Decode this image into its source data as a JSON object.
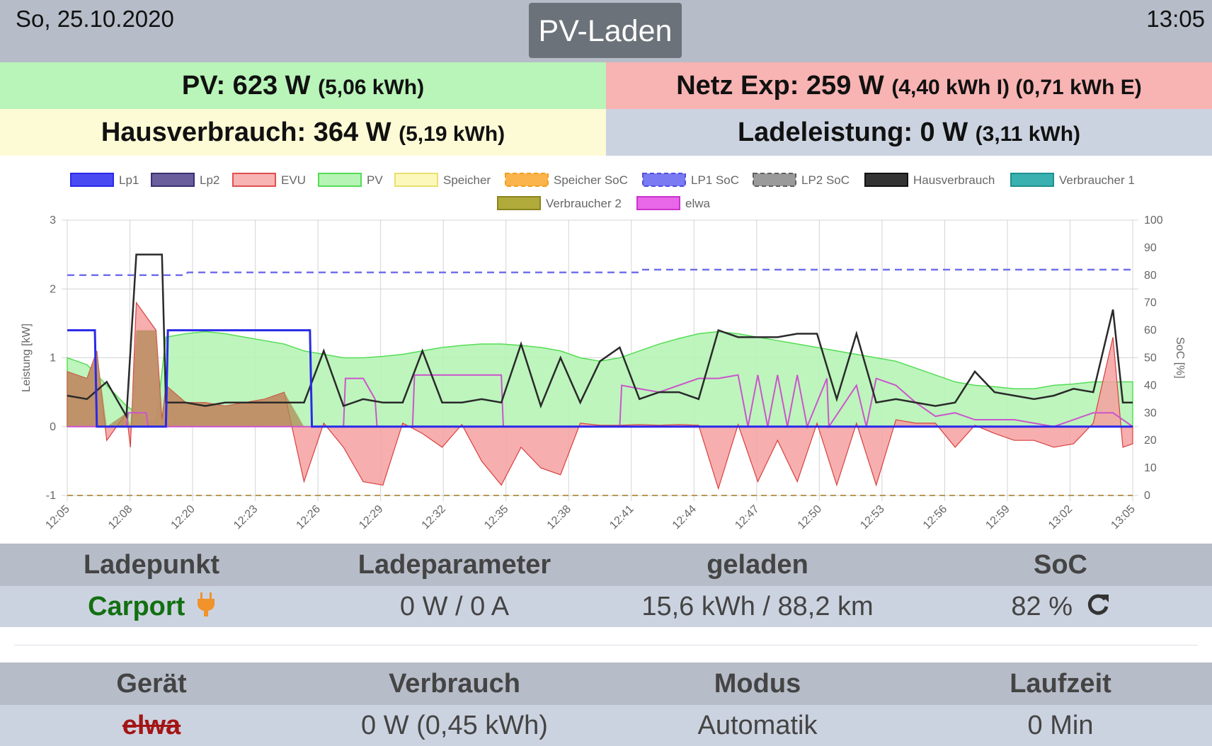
{
  "header": {
    "date": "So, 25.10.2020",
    "title": "PV-Laden",
    "time": "13:05"
  },
  "stats": {
    "pv_label": "PV: 623 W",
    "pv_extra": "(5,06 kWh)",
    "netz_label": "Netz Exp: 259 W",
    "netz_extra": "(4,40 kWh I) (0,71 kWh E)",
    "haus_label": "Hausverbrauch: 364 W",
    "haus_extra": "(5,19 kWh)",
    "lade_label": "Ladeleistung: 0 W",
    "lade_extra": "(3,11 kWh)"
  },
  "chart_data": {
    "type": "line",
    "ylabel": "Leistung [kW]",
    "y2label": "SoC [%]",
    "ylim": [
      -1,
      3
    ],
    "y2lim": [
      0,
      100
    ],
    "yticks": [
      "3",
      "2",
      "1",
      "0",
      "-1"
    ],
    "y2ticks": [
      "100",
      "90",
      "80",
      "70",
      "60",
      "50",
      "40",
      "30",
      "20",
      "10",
      "0"
    ],
    "xticks": [
      "12:05",
      "12:08",
      "12:20",
      "12:23",
      "12:26",
      "12:29",
      "12:32",
      "12:35",
      "12:38",
      "12:41",
      "12:44",
      "12:47",
      "12:50",
      "12:53",
      "12:56",
      "12:59",
      "13:02",
      "13:05"
    ],
    "legend": [
      {
        "name": "Lp1",
        "fill": "#4a4af2",
        "stroke": "#2a2ae8",
        "dash": false
      },
      {
        "name": "Lp2",
        "fill": "#6a5e9c",
        "stroke": "#3a3070",
        "dash": false
      },
      {
        "name": "EVU",
        "fill": "#f8b3b3",
        "stroke": "#e05050",
        "dash": false
      },
      {
        "name": "PV",
        "fill": "#b6f4b6",
        "stroke": "#55dd55",
        "dash": false
      },
      {
        "name": "Speicher",
        "fill": "#fcf8bc",
        "stroke": "#e8e070",
        "dash": false
      },
      {
        "name": "Speicher SoC",
        "fill": "#fbb44c",
        "stroke": "#f0a020",
        "dash": true
      },
      {
        "name": "LP1 SoC",
        "fill": "#7a7af2",
        "stroke": "#5050e0",
        "dash": true
      },
      {
        "name": "LP2 SoC",
        "fill": "#9a9a9a",
        "stroke": "#606060",
        "dash": true
      },
      {
        "name": "Hausverbrauch",
        "fill": "#333333",
        "stroke": "#111111",
        "dash": false
      },
      {
        "name": "Verbraucher 1",
        "fill": "#3ab0b0",
        "stroke": "#20908f",
        "dash": false
      },
      {
        "name": "Verbraucher 2",
        "fill": "#b0aa3a",
        "stroke": "#8a8420",
        "dash": false
      },
      {
        "name": "elwa",
        "fill": "#e866e8",
        "stroke": "#cc33cc",
        "dash": false
      }
    ],
    "series": [
      {
        "name": "PV",
        "values": [
          [
            0,
            1.0
          ],
          [
            1,
            0.9
          ],
          [
            2,
            0.6
          ],
          [
            3,
            0.3
          ],
          [
            4,
            0.1
          ],
          [
            4.5,
            0.05
          ],
          [
            5,
            1.3
          ],
          [
            6,
            1.35
          ],
          [
            7,
            1.38
          ],
          [
            8,
            1.35
          ],
          [
            9,
            1.3
          ],
          [
            10,
            1.25
          ],
          [
            11,
            1.2
          ],
          [
            12,
            1.1
          ],
          [
            13,
            1.05
          ],
          [
            14,
            1.0
          ],
          [
            15,
            1.0
          ],
          [
            16,
            1.02
          ],
          [
            17,
            1.05
          ],
          [
            18,
            1.1
          ],
          [
            19,
            1.15
          ],
          [
            20,
            1.18
          ],
          [
            21,
            1.2
          ],
          [
            22,
            1.2
          ],
          [
            23,
            1.18
          ],
          [
            24,
            1.15
          ],
          [
            25,
            1.1
          ],
          [
            26,
            1.0
          ],
          [
            27,
            0.95
          ],
          [
            28,
            1.0
          ],
          [
            29,
            1.1
          ],
          [
            30,
            1.2
          ],
          [
            31,
            1.28
          ],
          [
            32,
            1.35
          ],
          [
            33,
            1.38
          ],
          [
            34,
            1.35
          ],
          [
            35,
            1.3
          ],
          [
            36,
            1.25
          ],
          [
            37,
            1.2
          ],
          [
            38,
            1.15
          ],
          [
            39,
            1.1
          ],
          [
            40,
            1.05
          ],
          [
            41,
            1.0
          ],
          [
            42,
            0.95
          ],
          [
            43,
            0.85
          ],
          [
            44,
            0.75
          ],
          [
            45,
            0.65
          ],
          [
            46,
            0.6
          ],
          [
            47,
            0.58
          ],
          [
            48,
            0.55
          ],
          [
            49,
            0.55
          ],
          [
            50,
            0.6
          ],
          [
            51,
            0.62
          ],
          [
            52,
            0.65
          ],
          [
            53,
            0.65
          ],
          [
            54,
            0.65
          ]
        ]
      },
      {
        "name": "EVU",
        "values": [
          [
            0,
            0.8
          ],
          [
            1,
            0.7
          ],
          [
            1.5,
            1.1
          ],
          [
            2,
            -0.2
          ],
          [
            3,
            0.2
          ],
          [
            3.2,
            -0.3
          ],
          [
            3.5,
            1.8
          ],
          [
            4,
            1.6
          ],
          [
            4.5,
            1.4
          ],
          [
            4.8,
            0.1
          ],
          [
            5,
            0.6
          ],
          [
            6,
            0.35
          ],
          [
            7,
            0.35
          ],
          [
            8,
            0.3
          ],
          [
            9,
            0.35
          ],
          [
            10,
            0.4
          ],
          [
            11,
            0.5
          ],
          [
            12,
            -0.8
          ],
          [
            13,
            0.05
          ],
          [
            14,
            -0.3
          ],
          [
            15,
            -0.8
          ],
          [
            16,
            -0.85
          ],
          [
            17,
            0.05
          ],
          [
            18,
            -0.1
          ],
          [
            19,
            -0.3
          ],
          [
            20,
            0.03
          ],
          [
            21,
            -0.5
          ],
          [
            22,
            -0.85
          ],
          [
            23,
            -0.3
          ],
          [
            24,
            -0.6
          ],
          [
            25,
            -0.7
          ],
          [
            26,
            0.05
          ],
          [
            27,
            0.02
          ],
          [
            28,
            0.02
          ],
          [
            29,
            0.03
          ],
          [
            30,
            0.02
          ],
          [
            31,
            0.03
          ],
          [
            32,
            0.02
          ],
          [
            33,
            -0.9
          ],
          [
            34,
            0.03
          ],
          [
            35,
            -0.8
          ],
          [
            36,
            -0.2
          ],
          [
            37,
            -0.8
          ],
          [
            38,
            0.05
          ],
          [
            39,
            -0.85
          ],
          [
            40,
            0.05
          ],
          [
            41,
            -0.85
          ],
          [
            42,
            0.1
          ],
          [
            43,
            0.05
          ],
          [
            44,
            0.05
          ],
          [
            45,
            -0.3
          ],
          [
            46,
            0.02
          ],
          [
            47,
            -0.1
          ],
          [
            48,
            -0.2
          ],
          [
            49,
            -0.2
          ],
          [
            50,
            -0.3
          ],
          [
            51,
            -0.25
          ],
          [
            52,
            0.05
          ],
          [
            53,
            1.3
          ],
          [
            53.5,
            -0.3
          ],
          [
            54,
            -0.25
          ]
        ]
      },
      {
        "name": "Hausverbrauch",
        "values": [
          [
            0,
            0.45
          ],
          [
            1,
            0.4
          ],
          [
            2,
            0.65
          ],
          [
            3,
            0.15
          ],
          [
            3.5,
            2.5
          ],
          [
            4,
            2.5
          ],
          [
            4.8,
            2.5
          ],
          [
            5,
            0.35
          ],
          [
            6,
            0.35
          ],
          [
            7,
            0.3
          ],
          [
            8,
            0.35
          ],
          [
            9,
            0.35
          ],
          [
            10,
            0.35
          ],
          [
            11,
            0.35
          ],
          [
            12,
            0.35
          ],
          [
            13,
            1.1
          ],
          [
            14,
            0.3
          ],
          [
            15,
            0.4
          ],
          [
            16,
            0.35
          ],
          [
            17,
            0.35
          ],
          [
            18,
            1.1
          ],
          [
            19,
            0.35
          ],
          [
            20,
            0.35
          ],
          [
            21,
            0.4
          ],
          [
            22,
            0.35
          ],
          [
            23,
            1.2
          ],
          [
            24,
            0.3
          ],
          [
            25,
            1.0
          ],
          [
            26,
            0.35
          ],
          [
            27,
            0.95
          ],
          [
            28,
            1.15
          ],
          [
            29,
            0.4
          ],
          [
            30,
            0.5
          ],
          [
            31,
            0.5
          ],
          [
            32,
            0.4
          ],
          [
            33,
            1.4
          ],
          [
            34,
            1.3
          ],
          [
            35,
            1.3
          ],
          [
            36,
            1.3
          ],
          [
            37,
            1.35
          ],
          [
            38,
            1.35
          ],
          [
            39,
            0.4
          ],
          [
            40,
            1.35
          ],
          [
            41,
            0.35
          ],
          [
            42,
            0.4
          ],
          [
            43,
            0.35
          ],
          [
            44,
            0.3
          ],
          [
            45,
            0.35
          ],
          [
            46,
            0.8
          ],
          [
            47,
            0.5
          ],
          [
            48,
            0.45
          ],
          [
            49,
            0.4
          ],
          [
            50,
            0.45
          ],
          [
            51,
            0.55
          ],
          [
            52,
            0.5
          ],
          [
            53,
            1.7
          ],
          [
            53.5,
            0.35
          ],
          [
            54,
            0.35
          ]
        ]
      },
      {
        "name": "Lp1",
        "values": [
          [
            0,
            1.4
          ],
          [
            1.4,
            1.4
          ],
          [
            1.5,
            0
          ],
          [
            5,
            0
          ],
          [
            5.1,
            1.4
          ],
          [
            12.3,
            1.4
          ],
          [
            12.4,
            0
          ],
          [
            54,
            0
          ]
        ]
      },
      {
        "name": "elwa",
        "values": [
          [
            0,
            0
          ],
          [
            3,
            0
          ],
          [
            3.1,
            0.2
          ],
          [
            4,
            0.2
          ],
          [
            4.1,
            0
          ],
          [
            14,
            0
          ],
          [
            14.1,
            0.7
          ],
          [
            15,
            0.7
          ],
          [
            15.6,
            0.4
          ],
          [
            15.7,
            0
          ],
          [
            17.5,
            0
          ],
          [
            17.6,
            0.75
          ],
          [
            22,
            0.75
          ],
          [
            22.1,
            0
          ],
          [
            28,
            0
          ],
          [
            28.1,
            0.6
          ],
          [
            29,
            0.55
          ],
          [
            30,
            0.5
          ],
          [
            32,
            0.7
          ],
          [
            33,
            0.7
          ],
          [
            34,
            0.75
          ],
          [
            34.5,
            0
          ],
          [
            35,
            0.75
          ],
          [
            35.5,
            0
          ],
          [
            36,
            0.75
          ],
          [
            36.5,
            0
          ],
          [
            37,
            0.75
          ],
          [
            37.5,
            0
          ],
          [
            38.5,
            0.7
          ],
          [
            38.6,
            0
          ],
          [
            40,
            0.6
          ],
          [
            40.5,
            0
          ],
          [
            41,
            0.7
          ],
          [
            42,
            0.6
          ],
          [
            43,
            0.35
          ],
          [
            44,
            0.15
          ],
          [
            45,
            0.2
          ],
          [
            46,
            0.1
          ],
          [
            47,
            0.1
          ],
          [
            48,
            0.1
          ],
          [
            50,
            0
          ],
          [
            52,
            0.2
          ],
          [
            53,
            0.2
          ],
          [
            54,
            0
          ]
        ]
      },
      {
        "name": "LP1 SoC",
        "values": [
          [
            0,
            80
          ],
          [
            6,
            80
          ],
          [
            6.1,
            81
          ],
          [
            29,
            81
          ],
          [
            29.1,
            82
          ],
          [
            54,
            82
          ]
        ]
      },
      {
        "name": "Speicher SoC",
        "values": [
          [
            0,
            0
          ],
          [
            54,
            0
          ]
        ]
      }
    ]
  },
  "ladepunkt_table": {
    "headers": [
      "Ladepunkt",
      "Ladeparameter",
      "geladen",
      "SoC"
    ],
    "row": {
      "name": "Carport",
      "param": "0 W / 0 A",
      "charged": "15,6 kWh / 88,2 km",
      "soc": "82 %"
    }
  },
  "geraet_table": {
    "headers": [
      "Gerät",
      "Verbrauch",
      "Modus",
      "Laufzeit"
    ],
    "row": {
      "name": "elwa",
      "usage": "0 W (0,45 kWh)",
      "mode": "Automatik",
      "runtime": "0 Min"
    }
  }
}
